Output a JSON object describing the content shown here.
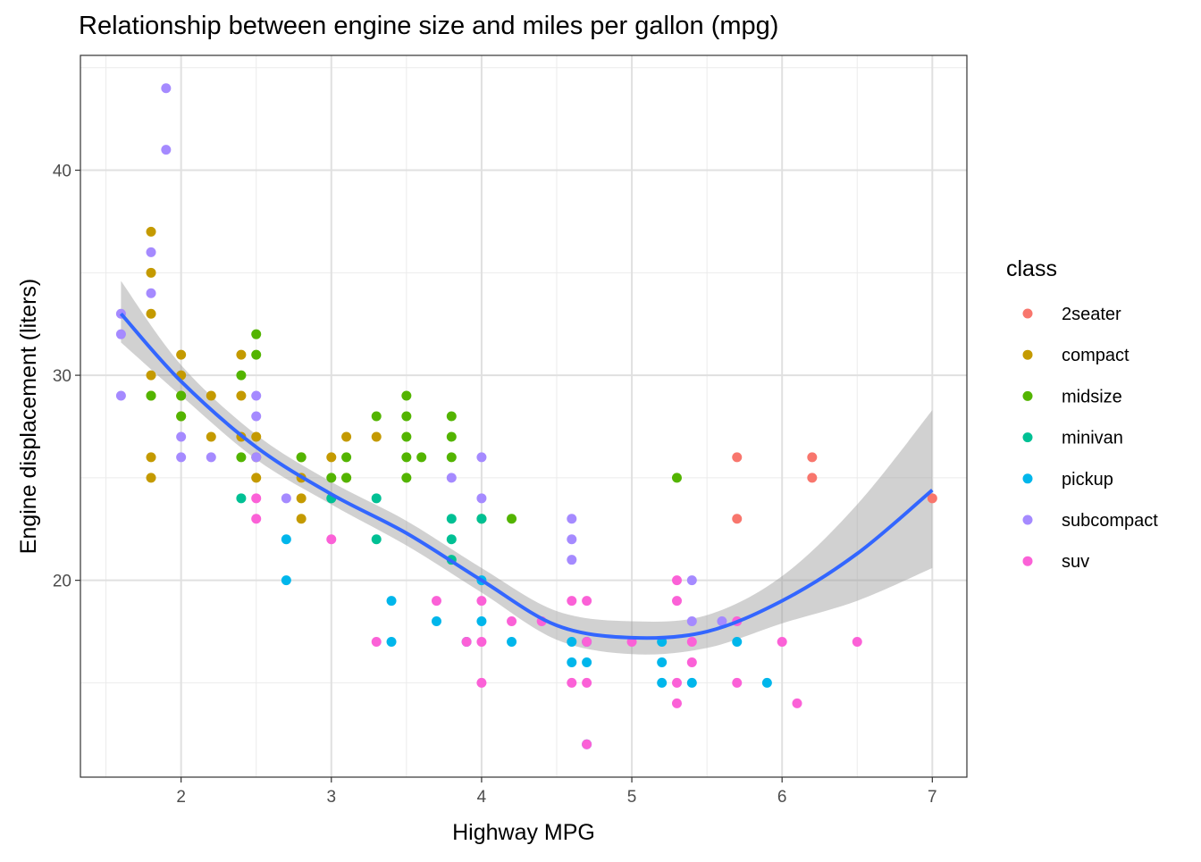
{
  "chart_data": {
    "type": "scatter",
    "title": "Relationship between engine size and miles per gallon (mpg)",
    "xlabel": "Highway MPG",
    "ylabel": "Engine displacement (liters)",
    "xlim": [
      1.33,
      7.23
    ],
    "ylim": [
      10.4,
      45.6
    ],
    "x_ticks": [
      2,
      3,
      4,
      5,
      6,
      7
    ],
    "y_ticks": [
      20,
      30,
      40
    ],
    "grid": true,
    "legend": {
      "title": "class",
      "position": "right"
    },
    "series": [
      {
        "name": "2seater",
        "color": "#F8766D",
        "points": [
          [
            5.7,
            26
          ],
          [
            5.7,
            23
          ],
          [
            6.2,
            26
          ],
          [
            6.2,
            25
          ],
          [
            7,
            24
          ]
        ]
      },
      {
        "name": "compact",
        "color": "#C49A00",
        "points": [
          [
            1.8,
            29
          ],
          [
            1.8,
            26
          ],
          [
            1.8,
            25
          ],
          [
            1.8,
            37
          ],
          [
            1.8,
            35
          ],
          [
            1.8,
            33
          ],
          [
            1.8,
            30
          ],
          [
            2,
            31
          ],
          [
            2,
            30
          ],
          [
            2,
            28
          ],
          [
            2,
            29
          ],
          [
            2.2,
            29
          ],
          [
            2.2,
            27
          ],
          [
            2.4,
            31
          ],
          [
            2.4,
            29
          ],
          [
            2.4,
            27
          ],
          [
            2.5,
            27
          ],
          [
            2.5,
            25
          ],
          [
            2.5,
            26
          ],
          [
            2.8,
            26
          ],
          [
            2.8,
            24
          ],
          [
            2.8,
            25
          ],
          [
            2.8,
            23
          ],
          [
            3,
            26
          ],
          [
            3.1,
            27
          ],
          [
            3.1,
            25
          ],
          [
            3.3,
            27
          ]
        ]
      },
      {
        "name": "midsize",
        "color": "#53B400",
        "points": [
          [
            1.8,
            29
          ],
          [
            2,
            29
          ],
          [
            2,
            28
          ],
          [
            2.4,
            30
          ],
          [
            2.4,
            26
          ],
          [
            2.5,
            31
          ],
          [
            2.5,
            32
          ],
          [
            2.8,
            26
          ],
          [
            3,
            25
          ],
          [
            3.1,
            26
          ],
          [
            3.1,
            25
          ],
          [
            3.3,
            28
          ],
          [
            3.5,
            29
          ],
          [
            3.5,
            28
          ],
          [
            3.5,
            27
          ],
          [
            3.5,
            26
          ],
          [
            3.5,
            25
          ],
          [
            3.6,
            26
          ],
          [
            3.8,
            28
          ],
          [
            3.8,
            27
          ],
          [
            3.8,
            26
          ],
          [
            4,
            23
          ],
          [
            4.2,
            23
          ],
          [
            5.3,
            25
          ]
        ]
      },
      {
        "name": "minivan",
        "color": "#00C094",
        "points": [
          [
            2.4,
            24
          ],
          [
            3,
            24
          ],
          [
            3.3,
            24
          ],
          [
            3.3,
            22
          ],
          [
            3.8,
            23
          ],
          [
            3.8,
            22
          ],
          [
            3.8,
            21
          ],
          [
            4,
            23
          ]
        ]
      },
      {
        "name": "pickup",
        "color": "#00B6EB",
        "points": [
          [
            2.7,
            22
          ],
          [
            2.7,
            20
          ],
          [
            3.4,
            19
          ],
          [
            3.4,
            17
          ],
          [
            3.7,
            18
          ],
          [
            3.9,
            17
          ],
          [
            4,
            20
          ],
          [
            4,
            18
          ],
          [
            4.2,
            17
          ],
          [
            4.6,
            17
          ],
          [
            4.6,
            16
          ],
          [
            4.7,
            17
          ],
          [
            4.7,
            16
          ],
          [
            4.7,
            12
          ],
          [
            5.2,
            17
          ],
          [
            5.2,
            16
          ],
          [
            5.2,
            15
          ],
          [
            5.4,
            15
          ],
          [
            5.7,
            17
          ],
          [
            5.9,
            15
          ]
        ]
      },
      {
        "name": "subcompact",
        "color": "#A58AFF",
        "points": [
          [
            1.6,
            33
          ],
          [
            1.6,
            32
          ],
          [
            1.6,
            29
          ],
          [
            1.8,
            36
          ],
          [
            1.8,
            34
          ],
          [
            1.9,
            44
          ],
          [
            1.9,
            41
          ],
          [
            2,
            27
          ],
          [
            2,
            26
          ],
          [
            2.2,
            26
          ],
          [
            2.5,
            29
          ],
          [
            2.5,
            28
          ],
          [
            2.5,
            26
          ],
          [
            2.7,
            24
          ],
          [
            3.8,
            25
          ],
          [
            4,
            26
          ],
          [
            4,
            24
          ],
          [
            4.6,
            23
          ],
          [
            4.6,
            22
          ],
          [
            4.6,
            21
          ],
          [
            5.4,
            20
          ],
          [
            5.4,
            18
          ],
          [
            5.6,
            18
          ]
        ]
      },
      {
        "name": "suv",
        "color": "#FB61D7",
        "points": [
          [
            2.5,
            24
          ],
          [
            2.5,
            23
          ],
          [
            3,
            22
          ],
          [
            3.3,
            17
          ],
          [
            3.7,
            19
          ],
          [
            3.9,
            17
          ],
          [
            4,
            19
          ],
          [
            4,
            17
          ],
          [
            4,
            15
          ],
          [
            4.2,
            18
          ],
          [
            4.4,
            18
          ],
          [
            4.6,
            19
          ],
          [
            4.6,
            15
          ],
          [
            4.7,
            19
          ],
          [
            4.7,
            17
          ],
          [
            4.7,
            15
          ],
          [
            4.7,
            12
          ],
          [
            5,
            17
          ],
          [
            5.3,
            20
          ],
          [
            5.3,
            19
          ],
          [
            5.3,
            15
          ],
          [
            5.3,
            14
          ],
          [
            5.4,
            17
          ],
          [
            5.4,
            16
          ],
          [
            5.7,
            18
          ],
          [
            5.7,
            15
          ],
          [
            6,
            17
          ],
          [
            6.1,
            14
          ],
          [
            6.5,
            17
          ]
        ]
      }
    ],
    "smooth": {
      "color": "#3366FF",
      "fit": [
        [
          1.6,
          33
        ],
        [
          2,
          29.7
        ],
        [
          2.5,
          26.5
        ],
        [
          3,
          24.2
        ],
        [
          3.5,
          22.3
        ],
        [
          4,
          20
        ],
        [
          4.5,
          17.8
        ],
        [
          5,
          17.2
        ],
        [
          5.5,
          17.5
        ],
        [
          6,
          19
        ],
        [
          6.5,
          21.3
        ],
        [
          7,
          24.4
        ]
      ],
      "lower": [
        [
          1.6,
          31.6
        ],
        [
          2,
          29
        ],
        [
          2.5,
          25.9
        ],
        [
          3,
          23.7
        ],
        [
          3.5,
          21.7
        ],
        [
          4,
          19.4
        ],
        [
          4.5,
          17.1
        ],
        [
          5,
          16.4
        ],
        [
          5.5,
          16.7
        ],
        [
          6,
          17.9
        ],
        [
          6.5,
          19
        ],
        [
          7,
          20.6
        ]
      ],
      "upper": [
        [
          1.6,
          34.6
        ],
        [
          2,
          30.5
        ],
        [
          2.5,
          27.1
        ],
        [
          3,
          24.8
        ],
        [
          3.5,
          22.9
        ],
        [
          4,
          20.6
        ],
        [
          4.5,
          18.5
        ],
        [
          5,
          18
        ],
        [
          5.5,
          18.3
        ],
        [
          6,
          20.2
        ],
        [
          6.5,
          23.7
        ],
        [
          7,
          28.3
        ]
      ]
    }
  }
}
